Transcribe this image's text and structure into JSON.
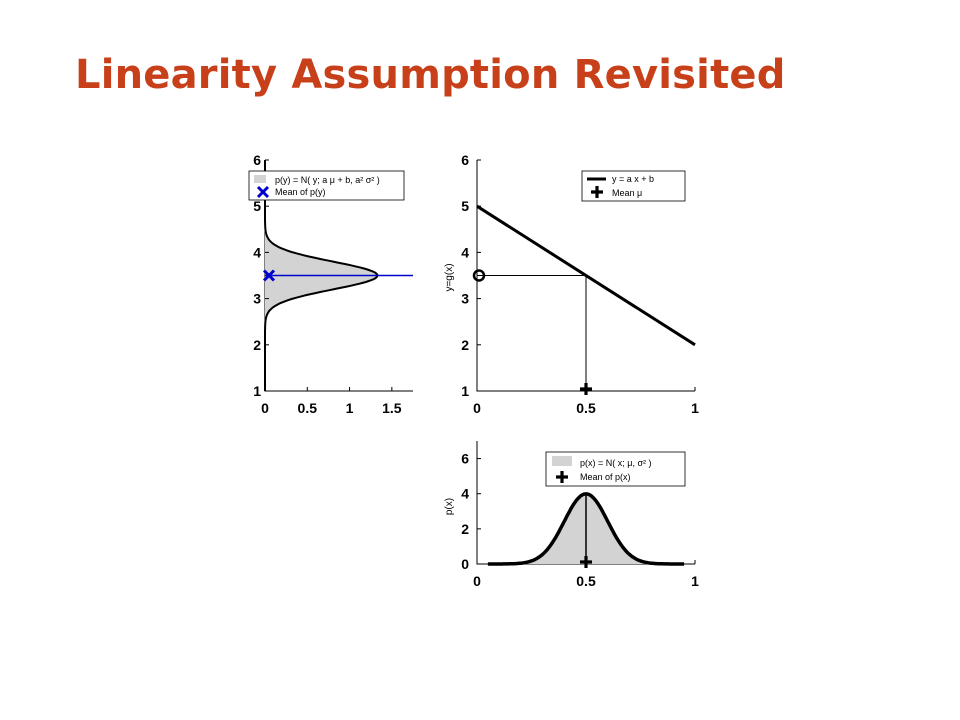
{
  "slide": {
    "title": "Linearity Assumption Revisited"
  },
  "colors": {
    "title": "#c8401a",
    "fill": "#d3d3d3",
    "blue": "#0000cc",
    "line": "#000000"
  },
  "chart_data": [
    {
      "id": "py",
      "type": "area",
      "orientation": "horizontal",
      "xlim": [
        0,
        1.75
      ],
      "ylim": [
        1,
        6
      ],
      "xticks": [
        0,
        0.5,
        1,
        1.5
      ],
      "xtick_labels": [
        "0",
        "0.5",
        "1",
        "1.5"
      ],
      "yticks": [
        1,
        2,
        3,
        4,
        5,
        6
      ],
      "ytick_labels": [
        "1",
        "2",
        "3",
        "4",
        "5",
        "6"
      ],
      "xlabel": "",
      "ylabel": "",
      "density": {
        "mean": 3.5,
        "std": 0.3,
        "peak": 1.33
      },
      "mean_value": 3.5,
      "legend": [
        {
          "marker": "fill-box",
          "label": "p(y) = N( y; a μ + b, a² σ² )"
        },
        {
          "marker": "blue-x",
          "label": "Mean of p(y)"
        }
      ],
      "legend_position": "top"
    },
    {
      "id": "gx",
      "type": "line",
      "xlim": [
        0,
        1
      ],
      "ylim": [
        1,
        6
      ],
      "xticks": [
        0,
        0.5,
        1
      ],
      "xtick_labels": [
        "0",
        "0.5",
        "1"
      ],
      "yticks": [
        1,
        2,
        3,
        4,
        5,
        6
      ],
      "ytick_labels": [
        "1",
        "2",
        "3",
        "4",
        "5",
        "6"
      ],
      "xlabel": "",
      "ylabel": "y=g(x)",
      "line": {
        "slope": -3,
        "intercept": 5
      },
      "mean_x": 0.5,
      "mapped_y": 3.5,
      "legend": [
        {
          "marker": "line",
          "label": "y = a x + b"
        },
        {
          "marker": "plus",
          "label": "Mean μ"
        }
      ],
      "legend_position": "top-right"
    },
    {
      "id": "px",
      "type": "area",
      "xlim": [
        0,
        1
      ],
      "ylim": [
        0,
        7
      ],
      "xticks": [
        0,
        0.5,
        1
      ],
      "xtick_labels": [
        "0",
        "0.5",
        "1"
      ],
      "yticks": [
        0,
        2,
        4,
        6
      ],
      "ytick_labels": [
        "0",
        "2",
        "4",
        "6"
      ],
      "xlabel": "",
      "ylabel": "p(x)",
      "density": {
        "mean": 0.5,
        "std": 0.1,
        "peak": 3.99
      },
      "mean_value": 0.5,
      "legend": [
        {
          "marker": "fill-box",
          "label": "p(x) = N( x; μ, σ² )"
        },
        {
          "marker": "plus",
          "label": "Mean of p(x)"
        }
      ],
      "legend_position": "top-right"
    }
  ]
}
